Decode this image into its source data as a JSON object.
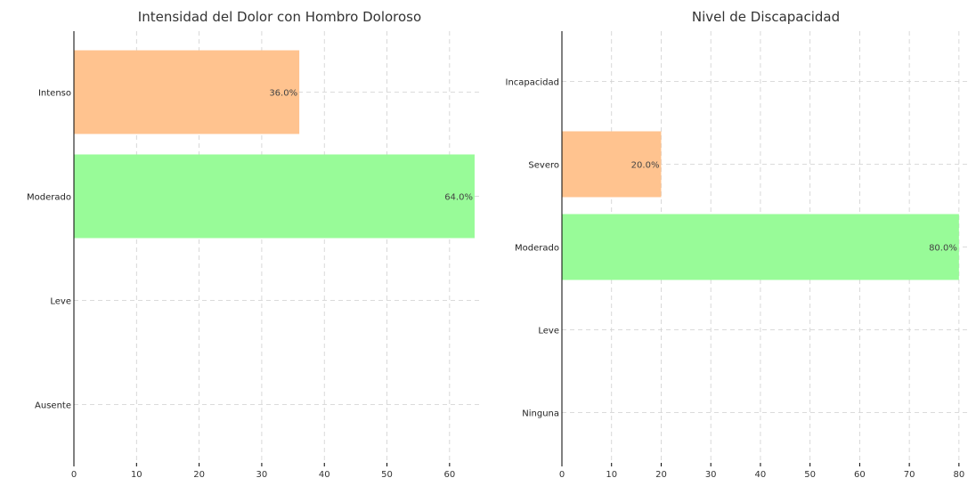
{
  "chart_data": [
    {
      "type": "bar",
      "orientation": "horizontal",
      "title": "Intensidad del Dolor con Hombro Doloroso",
      "categories": [
        "Intenso",
        "Moderado",
        "Leve",
        "Ausente"
      ],
      "values": [
        36.0,
        64.0,
        0,
        0
      ],
      "data_labels": [
        "36.0%",
        "64.0%",
        "",
        ""
      ],
      "colors": [
        "#ffc38f",
        "#98fb98",
        "#98fb98",
        "#98fb98"
      ],
      "xlim": [
        0,
        65
      ],
      "xticks": [
        0,
        10,
        20,
        30,
        40,
        50,
        60
      ],
      "xlabel": "",
      "ylabel": "",
      "grid": true
    },
    {
      "type": "bar",
      "orientation": "horizontal",
      "title": "Nivel de Discapacidad",
      "categories": [
        "Incapacidad",
        "Severo",
        "Moderado",
        "Leve",
        "Ninguna"
      ],
      "values": [
        0,
        20.0,
        80.0,
        0,
        0
      ],
      "data_labels": [
        "",
        "20.0%",
        "80.0%",
        "",
        ""
      ],
      "colors": [
        "#98fb98",
        "#ffc38f",
        "#98fb98",
        "#98fb98",
        "#98fb98"
      ],
      "xlim": [
        0,
        82
      ],
      "xticks": [
        0,
        10,
        20,
        30,
        40,
        50,
        60,
        70,
        80
      ],
      "xlabel": "",
      "ylabel": "",
      "grid": true
    }
  ]
}
